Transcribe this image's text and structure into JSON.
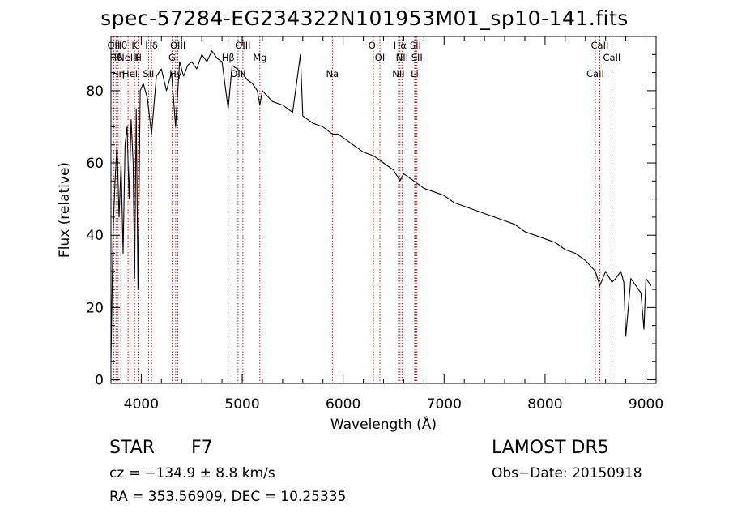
{
  "header": {
    "title": "spec-57284-EG234322N101953M01_sp10-141.fits"
  },
  "info": {
    "object_type": "STAR",
    "subclass": "F7",
    "survey": "LAMOST  DR5",
    "cz": "cz = −134.9 ± 8.8 km/s",
    "obs_date": "Obs−Date: 20150918",
    "radec": "RA = 353.56909, DEC =  10.25335"
  },
  "chart_data": {
    "type": "line",
    "title": "spec-57284-EG234322N101953M01_sp10-141.fits",
    "xlabel": "Wavelength (Å)",
    "ylabel": "Flux (relative)",
    "xlim": [
      3700,
      9100
    ],
    "ylim": [
      -1,
      95
    ],
    "x_ticks": [
      4000,
      5000,
      6000,
      7000,
      8000,
      9000
    ],
    "y_ticks": [
      0,
      20,
      40,
      60,
      80
    ],
    "line_color": "#000000",
    "marker_color": "#b00000",
    "series": [
      {
        "x": [
          3700,
          3720,
          3740,
          3760,
          3780,
          3800,
          3820,
          3840,
          3860,
          3880,
          3900,
          3920,
          3934,
          3950,
          3968,
          3990,
          4020,
          4060,
          4102,
          4150,
          4200,
          4250,
          4300,
          4340,
          4380,
          4420,
          4460,
          4500,
          4550,
          4600,
          4650,
          4700,
          4750,
          4800,
          4861,
          4900,
          4950,
          5000,
          5050,
          5100,
          5150,
          5175,
          5200,
          5300,
          5400,
          5500,
          5577,
          5600,
          5700,
          5800,
          5893,
          5950,
          6000,
          6100,
          6200,
          6300,
          6400,
          6500,
          6563,
          6600,
          6700,
          6800,
          6900,
          7000,
          7100,
          7200,
          7300,
          7400,
          7500,
          7600,
          7700,
          7800,
          7900,
          8000,
          8100,
          8200,
          8300,
          8400,
          8498,
          8542,
          8600,
          8662,
          8700,
          8750,
          8780,
          8800,
          8850,
          8900,
          8950,
          8980,
          9000,
          9050
        ],
        "y": [
          5,
          40,
          55,
          65,
          45,
          60,
          35,
          65,
          70,
          50,
          72,
          60,
          28,
          75,
          25,
          80,
          82,
          78,
          68,
          84,
          86,
          80,
          85,
          70,
          88,
          84,
          87,
          88,
          86,
          90,
          88,
          91,
          89,
          88,
          75,
          87,
          86,
          85,
          83,
          82,
          80,
          76,
          80,
          77,
          76,
          74,
          90,
          73,
          71,
          70,
          68,
          68,
          67,
          65,
          63,
          62,
          60,
          58,
          55,
          57,
          55,
          53,
          52,
          51,
          49,
          48,
          47,
          46,
          45,
          44,
          43,
          41,
          40,
          39,
          38,
          36,
          35,
          33,
          30,
          26,
          30,
          27,
          28,
          30,
          27,
          12,
          28,
          26,
          24,
          14,
          28,
          26
        ]
      }
    ],
    "lines": [
      {
        "w": 3727,
        "labels": [
          "OII"
        ]
      },
      {
        "w": 3750,
        "labels": [
          "Hθ"
        ]
      },
      {
        "w": 3771,
        "labels": [
          "Hη"
        ]
      },
      {
        "w": 3798,
        "labels": [
          "Hθ"
        ]
      },
      {
        "w": 3869,
        "labels": [
          "NeIII"
        ]
      },
      {
        "w": 3889,
        "labels": [
          "HeI"
        ]
      },
      {
        "w": 3934,
        "labels": [
          "K"
        ]
      },
      {
        "w": 3969,
        "labels": [
          "H"
        ]
      },
      {
        "w": 4072,
        "labels": [
          "SII"
        ]
      },
      {
        "w": 4102,
        "labels": [
          "Hδ"
        ]
      },
      {
        "w": 4305,
        "labels": [
          "G"
        ]
      },
      {
        "w": 4341,
        "labels": [
          "Hγ"
        ]
      },
      {
        "w": 4363,
        "labels": [
          "OIII"
        ]
      },
      {
        "w": 4861,
        "labels": [
          "Hβ"
        ]
      },
      {
        "w": 4959,
        "labels": [
          "OIII"
        ]
      },
      {
        "w": 5007,
        "labels": [
          "OIII"
        ]
      },
      {
        "w": 5175,
        "labels": [
          "Mg"
        ]
      },
      {
        "w": 5893,
        "labels": [
          "Na"
        ]
      },
      {
        "w": 6300,
        "labels": [
          "OI"
        ]
      },
      {
        "w": 6364,
        "labels": [
          "OI"
        ]
      },
      {
        "w": 6548,
        "labels": [
          "NII"
        ]
      },
      {
        "w": 6563,
        "labels": [
          "Hα"
        ]
      },
      {
        "w": 6583,
        "labels": [
          "NII"
        ]
      },
      {
        "w": 6708,
        "labels": [
          "Li"
        ]
      },
      {
        "w": 6716,
        "labels": [
          "SII"
        ]
      },
      {
        "w": 6731,
        "labels": [
          "SII"
        ]
      },
      {
        "w": 8498,
        "labels": [
          "CaII"
        ]
      },
      {
        "w": 8542,
        "labels": [
          "CaII"
        ]
      },
      {
        "w": 8662,
        "labels": [
          "CaII"
        ]
      }
    ]
  }
}
